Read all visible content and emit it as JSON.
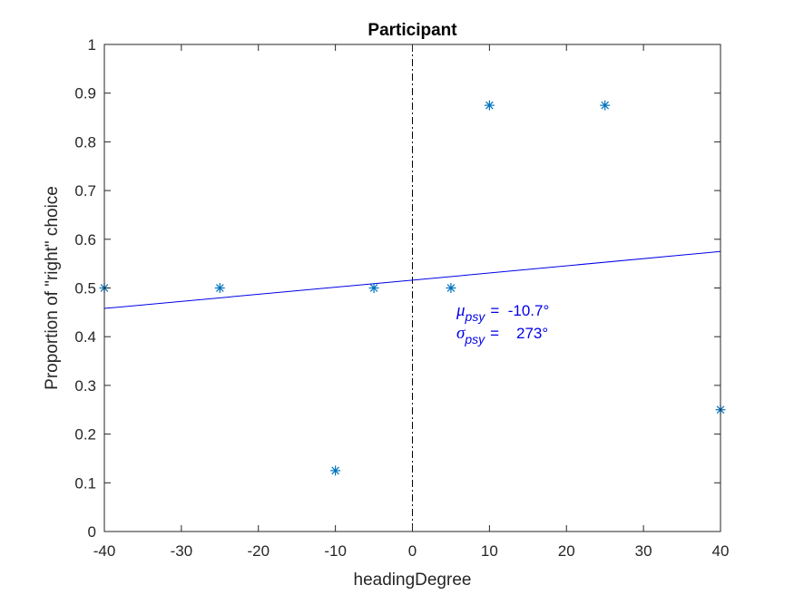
{
  "chart_data": {
    "type": "scatter",
    "title": "Participant",
    "xlabel": "headingDegree",
    "ylabel": "Proportion of \"right\" choice",
    "xlim": [
      -40,
      40
    ],
    "ylim": [
      0,
      1
    ],
    "xticks": [
      -40,
      -30,
      -20,
      -10,
      0,
      10,
      20,
      30,
      40
    ],
    "xtick_labels": [
      "-40",
      "-30",
      "-20",
      "-10",
      "0",
      "10",
      "20",
      "30",
      "40"
    ],
    "yticks": [
      0,
      0.1,
      0.2,
      0.3,
      0.4,
      0.5,
      0.6,
      0.7,
      0.8,
      0.9,
      1
    ],
    "ytick_labels": [
      "0",
      "0.1",
      "0.2",
      "0.3",
      "0.4",
      "0.5",
      "0.6",
      "0.7",
      "0.8",
      "0.9",
      "1"
    ],
    "grid": false,
    "series": [
      {
        "marker": "asterisk",
        "color": "#0072BD",
        "x": [
          -40,
          -25,
          -10,
          -5,
          5,
          10,
          25,
          40
        ],
        "y": [
          0.5,
          0.5,
          0.125,
          0.5,
          0.5,
          0.875,
          0.875,
          0.25
        ]
      },
      {
        "marker": "none",
        "line": "solid",
        "color": "#0000E6",
        "x": [
          -40,
          0,
          40
        ],
        "y": [
          0.458,
          0.516,
          0.575
        ]
      }
    ],
    "reference_line": {
      "x": 0,
      "style": "dash-dot",
      "color": "#000000"
    },
    "annotations": [
      {
        "symbol": "μ",
        "subscript": "psy",
        "text": "=  -10.7°"
      },
      {
        "symbol": "σ",
        "subscript": "psy",
        "text": "=    273°"
      }
    ]
  }
}
